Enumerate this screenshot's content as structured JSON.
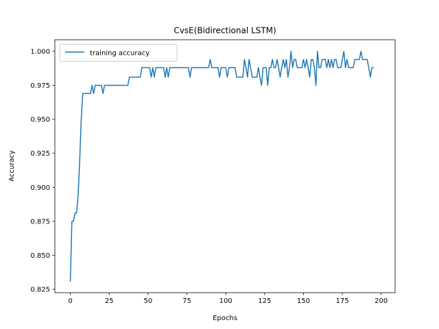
{
  "chart_data": {
    "type": "line",
    "title": "CvsE(Bidirectional LSTM)",
    "xlabel": "Epochs",
    "ylabel": "Accuracy",
    "xlim": [
      -9.95,
      208.95
    ],
    "ylim": [
      0.8225,
      1.0085
    ],
    "xticks": [
      0,
      25,
      50,
      75,
      100,
      125,
      150,
      175,
      200
    ],
    "yticks": [
      0.825,
      0.85,
      0.875,
      0.9,
      0.925,
      0.95,
      0.975,
      1.0
    ],
    "ytick_labels": [
      "0.825",
      "0.850",
      "0.875",
      "0.900",
      "0.925",
      "0.950",
      "0.975",
      "1.000"
    ],
    "grid": false,
    "legend_position": "upper-left",
    "colors": {
      "series": "#1f77b4",
      "axes": "#000000"
    },
    "series": [
      {
        "name": "training accuracy",
        "x_start": 0,
        "x_step": 1,
        "values": [
          0.831,
          0.875,
          0.875,
          0.881,
          0.881,
          0.894,
          0.919,
          0.95,
          0.969,
          0.969,
          0.969,
          0.969,
          0.969,
          0.969,
          0.975,
          0.969,
          0.975,
          0.975,
          0.975,
          0.975,
          0.975,
          0.969,
          0.975,
          0.975,
          0.975,
          0.975,
          0.975,
          0.975,
          0.975,
          0.975,
          0.975,
          0.975,
          0.975,
          0.975,
          0.975,
          0.975,
          0.975,
          0.975,
          0.981,
          0.981,
          0.981,
          0.981,
          0.981,
          0.981,
          0.981,
          0.981,
          0.988,
          0.988,
          0.988,
          0.988,
          0.988,
          0.988,
          0.981,
          0.988,
          0.981,
          0.988,
          0.988,
          0.988,
          0.988,
          0.988,
          0.988,
          0.981,
          0.988,
          0.981,
          0.988,
          0.988,
          0.988,
          0.988,
          0.988,
          0.988,
          0.988,
          0.988,
          0.988,
          0.988,
          0.988,
          0.988,
          0.988,
          0.981,
          0.988,
          0.988,
          0.988,
          0.988,
          0.988,
          0.988,
          0.988,
          0.988,
          0.988,
          0.988,
          0.988,
          0.988,
          0.994,
          0.988,
          0.988,
          0.988,
          0.988,
          0.988,
          0.981,
          0.988,
          0.988,
          0.988,
          0.988,
          0.981,
          0.988,
          0.988,
          0.988,
          0.988,
          0.988,
          0.981,
          0.981,
          0.981,
          0.981,
          0.981,
          0.994,
          0.988,
          0.981,
          0.994,
          0.988,
          0.981,
          0.981,
          0.981,
          0.981,
          0.988,
          0.981,
          0.975,
          0.988,
          0.988,
          0.988,
          0.975,
          0.988,
          0.988,
          0.994,
          0.988,
          0.988,
          0.994,
          0.988,
          0.981,
          0.988,
          0.994,
          0.988,
          0.994,
          0.981,
          0.988,
          1.0,
          0.988,
          0.994,
          0.994,
          0.988,
          0.988,
          0.988,
          0.988,
          0.994,
          0.988,
          0.994,
          0.988,
          0.981,
          0.994,
          0.994,
          0.988,
          0.975,
          1.0,
          0.988,
          0.988,
          0.994,
          0.994,
          0.994,
          0.988,
          0.994,
          0.988,
          0.994,
          0.988,
          0.994,
          0.994,
          0.988,
          0.988,
          0.988,
          0.994,
          1.0,
          0.988,
          0.994,
          0.988,
          0.988,
          0.988,
          0.988,
          0.994,
          0.994,
          0.994,
          0.994,
          1.0,
          0.994,
          0.994,
          0.994,
          0.994,
          0.988,
          0.981,
          0.988,
          0.988
        ]
      }
    ]
  }
}
